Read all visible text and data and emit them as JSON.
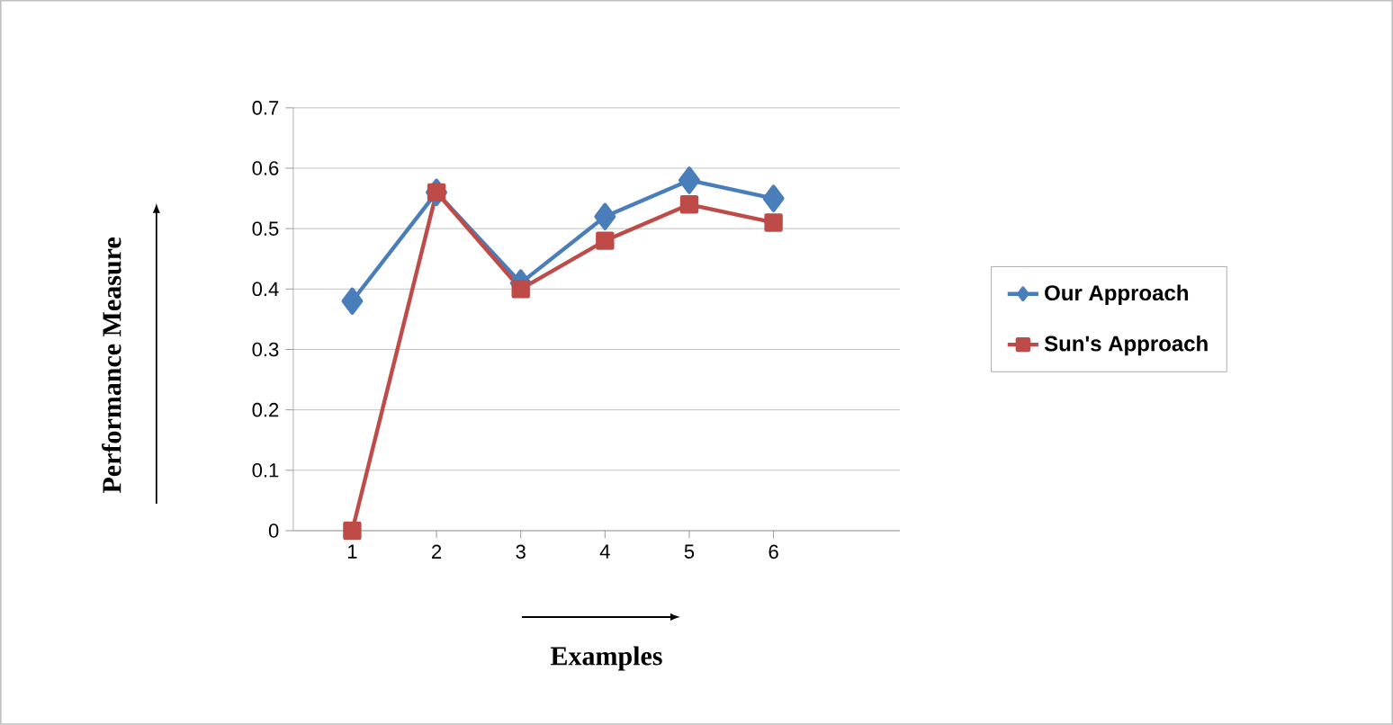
{
  "chart_data": {
    "type": "line",
    "xlabel": "Examples",
    "ylabel": "Performance Measure",
    "categories": [
      "1",
      "2",
      "3",
      "4",
      "5",
      "6",
      null
    ],
    "series": [
      {
        "name": "Our Approach",
        "color": "#4a7ebb",
        "marker": "diamond",
        "values": [
          0.38,
          0.56,
          0.41,
          0.52,
          0.58,
          0.55,
          null
        ]
      },
      {
        "name": "Sun's Approach",
        "color": "#be4b48",
        "marker": "square",
        "values": [
          0,
          0.56,
          0.4,
          0.48,
          0.54,
          0.51,
          null
        ]
      }
    ],
    "ylim": [
      0,
      0.7
    ],
    "yticks": [
      0,
      0.1,
      0.2,
      0.3,
      0.4,
      0.5,
      0.6,
      0.7
    ],
    "grid": "y",
    "legend": "right",
    "line_style": "solid"
  }
}
